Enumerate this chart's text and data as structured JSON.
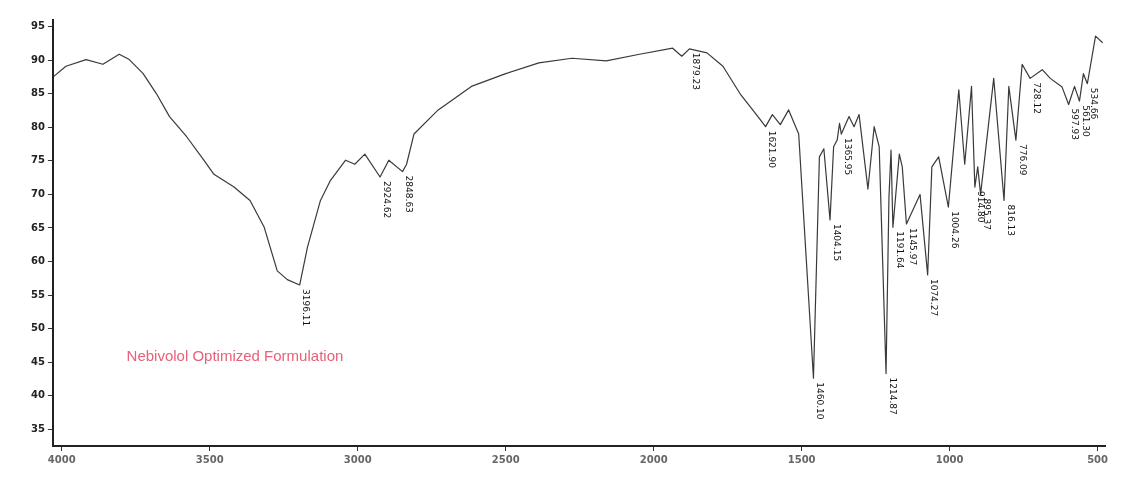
{
  "chart_data": {
    "type": "line",
    "xlim": [
      4030,
      475
    ],
    "xticks": [
      4000,
      3500,
      3000,
      2500,
      2000,
      1500,
      1000,
      500
    ],
    "ylim": [
      32.5,
      96
    ],
    "yticks": [
      35,
      40,
      45,
      50,
      55,
      60,
      65,
      70,
      75,
      80,
      85,
      90,
      95
    ],
    "grid": false,
    "legend": false,
    "marker": "none",
    "line_style": "solid",
    "series": [
      {
        "color": "#3a3a3a",
        "x": [
          4027,
          3986,
          3918,
          3861,
          3806,
          3772,
          3725,
          3680,
          3636,
          3578,
          3520,
          3486,
          3418,
          3364,
          3316,
          3272,
          3238,
          3196.11,
          3170,
          3126,
          3092,
          3041,
          3010,
          2976,
          2924.62,
          2895,
          2848.63,
          2835,
          2810,
          2728,
          2616,
          2500,
          2388,
          2276,
          2160,
          2048,
          1936,
          1905,
          1879.23,
          1820,
          1766,
          1708,
          1674,
          1621.9,
          1599,
          1572,
          1544,
          1510,
          1460.1,
          1440,
          1425,
          1404.15,
          1392,
          1380,
          1372,
          1365.95,
          1340,
          1323,
          1306,
          1276,
          1255,
          1238,
          1214.87,
          1205,
          1198,
          1191.64,
          1170,
          1160,
          1145.97,
          1100,
          1074.27,
          1060,
          1037,
          1004.26,
          969,
          949,
          926,
          914.8,
          905,
          895.37,
          851,
          816.13,
          800,
          776.09,
          755,
          728.12,
          687,
          660,
          620,
          597.93,
          578,
          561.3,
          548,
          534.66,
          507,
          483
        ],
        "values": [
          87.6,
          89.1,
          90.1,
          89.4,
          90.9,
          90.1,
          88,
          85,
          81.6,
          78.6,
          75.1,
          73,
          71.1,
          69.1,
          65.1,
          58.6,
          57.3,
          56.5,
          62.1,
          69.1,
          72.1,
          75.1,
          74.5,
          76,
          72.6,
          75.1,
          73.4,
          74.5,
          79,
          82.6,
          86.1,
          88,
          89.6,
          90.3,
          89.9,
          90.9,
          91.8,
          90.6,
          91.7,
          91.1,
          89.1,
          85,
          83.1,
          80.1,
          81.9,
          80.4,
          82.6,
          79,
          42.6,
          75.6,
          76.8,
          66.2,
          77.1,
          78.1,
          80.6,
          79,
          81.6,
          80.1,
          81.9,
          70.8,
          80.1,
          77.1,
          43.3,
          69.6,
          76.6,
          65.1,
          76,
          74.1,
          65.6,
          70,
          58,
          74.1,
          75.6,
          68.1,
          85.6,
          74.5,
          86.1,
          71.1,
          74.1,
          70,
          87.3,
          69.1,
          86.1,
          78.1,
          89.4,
          87.3,
          88.6,
          87.3,
          86,
          83.4,
          86.1,
          83.9,
          88,
          86.5,
          93.6,
          92.6
        ]
      }
    ],
    "annotations": [
      {
        "text": "3196.11",
        "x": 3196.11,
        "y": 56.5
      },
      {
        "text": "2924.62",
        "x": 2924.62,
        "y": 72.6
      },
      {
        "text": "2848.63",
        "x": 2848.63,
        "y": 73.4
      },
      {
        "text": "1879.23",
        "x": 1879.23,
        "y": 91.7
      },
      {
        "text": "1621.90",
        "x": 1621.9,
        "y": 80.1
      },
      {
        "text": "1460.10",
        "x": 1460.1,
        "y": 42.6
      },
      {
        "text": "1404.15",
        "x": 1404.15,
        "y": 66.2
      },
      {
        "text": "1365.95",
        "x": 1365.95,
        "y": 79
      },
      {
        "text": "1214.87",
        "x": 1214.87,
        "y": 43.3
      },
      {
        "text": "1191.64",
        "x": 1191.64,
        "y": 65.1
      },
      {
        "text": "1145.97",
        "x": 1145.97,
        "y": 65.6
      },
      {
        "text": "1074.27",
        "x": 1074.27,
        "y": 58
      },
      {
        "text": "1004.26",
        "x": 1004.26,
        "y": 68.1
      },
      {
        "text": "914.80",
        "x": 914.8,
        "y": 71.1
      },
      {
        "text": "895.37",
        "x": 895.37,
        "y": 70
      },
      {
        "text": "816.13",
        "x": 816.13,
        "y": 69.1
      },
      {
        "text": "776.09",
        "x": 776.09,
        "y": 78.1
      },
      {
        "text": "728.12",
        "x": 728.12,
        "y": 87.3
      },
      {
        "text": "597.93",
        "x": 597.93,
        "y": 83.4
      },
      {
        "text": "561.30",
        "x": 561.3,
        "y": 83.9
      },
      {
        "text": "534.66",
        "x": 534.66,
        "y": 86.5
      },
      "Nebivolol Optimized Formulation"
    ]
  }
}
